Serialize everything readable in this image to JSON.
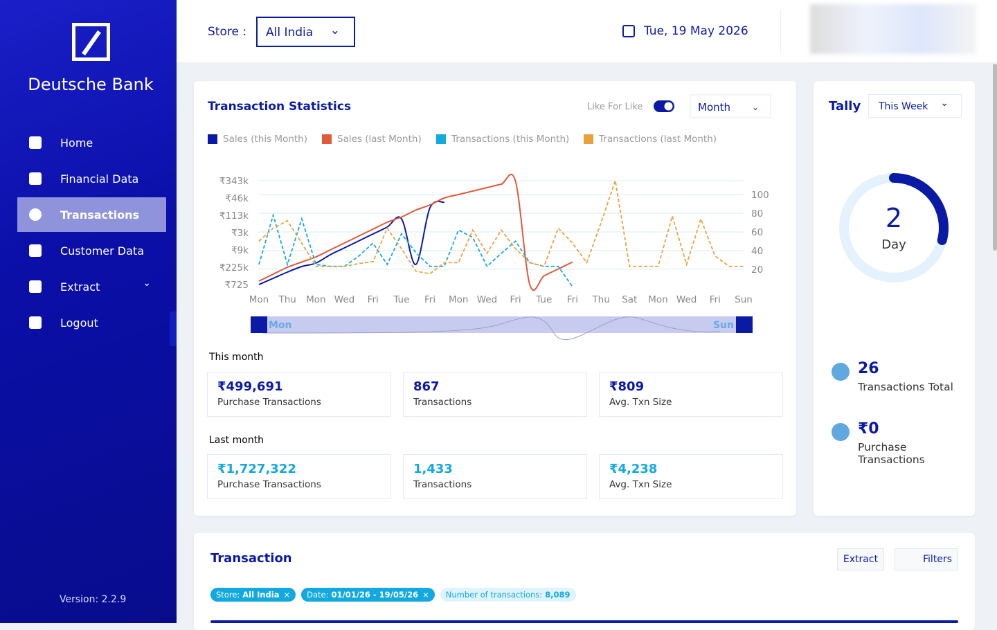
{
  "sidebar": {
    "brand": "Deutsche Bank",
    "nav": [
      "Home",
      "Financial Data",
      "Transactions",
      "Customer Data",
      "Extract",
      "Logout"
    ],
    "version": "Version: 2.2.9"
  },
  "header": {
    "store_label": "Store :",
    "store_value": "All India",
    "date": "Tue, 19 May 2026"
  },
  "chart_data": {
    "type": "line",
    "title": "Transaction Statistics",
    "toggle_label": "Like For Like",
    "period": "Month",
    "categories": [
      "Mon",
      null,
      "Thu",
      null,
      "Mon",
      null,
      "Wed",
      null,
      "Fri",
      null,
      "Tue",
      null,
      "Fri",
      null,
      "Mon",
      null,
      "Wed",
      null,
      "Fri",
      null,
      "Tue",
      null,
      "Fri",
      null,
      "Thu",
      null,
      "Sat",
      null,
      "Mon",
      null,
      "Wed",
      null,
      "Fri",
      null,
      "Sun"
    ],
    "ytick_labels": [
      "₹725",
      "₹225k",
      "₹9k",
      "₹3k",
      "₹113k",
      "₹46k",
      "₹343k"
    ],
    "ylim": [
      0,
      6
    ],
    "y2lim": [
      0,
      115
    ],
    "y2ticks": [
      20,
      40,
      60,
      80,
      100
    ],
    "grid": true,
    "series": [
      {
        "name": "Sales (this Month)",
        "color": "#0a1aa5",
        "axis": "y",
        "dashed": false,
        "values": [
          0,
          0.36,
          0.72,
          1.04,
          1.24,
          1.72,
          2.12,
          2.52,
          2.92,
          3.32,
          3.8,
          1.16,
          4.44,
          4.76,
          null,
          null,
          null,
          null,
          null,
          null,
          null,
          null,
          null,
          null,
          null,
          null,
          null,
          null,
          null,
          null,
          null,
          null,
          null,
          null,
          null
        ]
      },
      {
        "name": "Sales (last Month)",
        "color": "#e05a3a",
        "axis": "y",
        "dashed": false,
        "values": [
          0.2,
          0.6,
          1.0,
          1.3,
          1.6,
          2.0,
          2.4,
          2.8,
          3.2,
          3.6,
          3.9,
          4.3,
          4.6,
          5.0,
          5.2,
          5.4,
          5.6,
          5.8,
          5.96,
          0,
          0.5,
          0.9,
          1.3,
          null,
          null,
          null,
          null,
          null,
          null,
          null,
          null,
          null,
          null,
          null,
          null
        ]
      },
      {
        "name": "Transactions (this Month)",
        "color": "#12a8e0",
        "axis": "y2",
        "dashed": true,
        "values": [
          25,
          78,
          25,
          74,
          25,
          23,
          23,
          34,
          48,
          25,
          58,
          38,
          23,
          23,
          62,
          54,
          23,
          37,
          50,
          27,
          23,
          23,
          1,
          null,
          null,
          null,
          null,
          null,
          null,
          null,
          null,
          null,
          null,
          null,
          null
        ]
      },
      {
        "name": "Transactions (last Month)",
        "color": "#eba13a",
        "axis": "y2",
        "dashed": true,
        "values": [
          50,
          64,
          72,
          48,
          23,
          23,
          23,
          26,
          28,
          64,
          42,
          18,
          15,
          27,
          27,
          62,
          37,
          62,
          42,
          27,
          23,
          64,
          48,
          27,
          70,
          115,
          23,
          23,
          23,
          77,
          25,
          74,
          34,
          23,
          23
        ]
      }
    ],
    "range_start": "Mon",
    "range_end": "Sun"
  },
  "stats": {
    "this_month_label": "This month",
    "this_month": [
      {
        "value": "₹499,691",
        "label": "Purchase Transactions"
      },
      {
        "value": "867",
        "label": "Transactions"
      },
      {
        "value": "₹809",
        "label": "Avg. Txn Size"
      }
    ],
    "last_month_label": "Last month",
    "last_month": [
      {
        "value": "₹1,727,322",
        "label": "Purchase Transactions"
      },
      {
        "value": "1,433",
        "label": "Transactions"
      },
      {
        "value": "₹4,238",
        "label": "Avg. Txn Size"
      }
    ]
  },
  "tally": {
    "title": "Tally",
    "period": "This Week",
    "ring_value": "2",
    "ring_unit": "Day",
    "ring_fraction": 0.29,
    "items": [
      {
        "value": "26",
        "label": "Transactions Total"
      },
      {
        "value": "₹0",
        "label": "Purchase Transactions"
      }
    ]
  },
  "transactions": {
    "title": "Transaction",
    "extract": "Extract",
    "filters": "Filters",
    "chips": [
      {
        "key": "Store:",
        "value": "All India"
      },
      {
        "key": "Date:",
        "value": "01/01/26 - 19/05/26"
      },
      {
        "key": "Number of transactions:",
        "value": "8,089"
      }
    ]
  }
}
